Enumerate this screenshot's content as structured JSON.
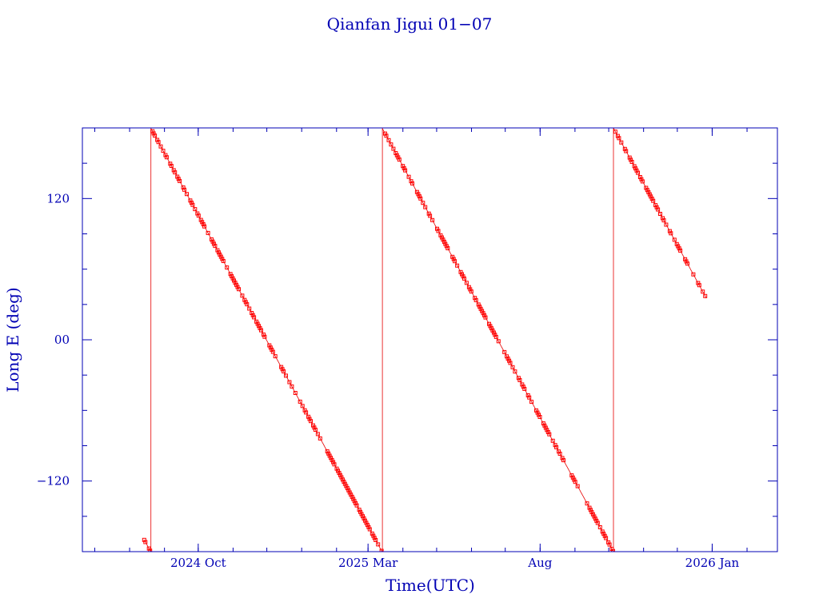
{
  "chart_data": {
    "type": "scatter",
    "title": "Qianfan Jigui 01−07",
    "xlabel": "Time(UTC)",
    "ylabel": "Long E (deg)",
    "x_range": [
      "2024-06-20",
      "2026-02-28"
    ],
    "ylim": [
      -180,
      180
    ],
    "x_ticks": [
      {
        "date": "2024-10-01",
        "label": "2024 Oct"
      },
      {
        "date": "2025-03-01",
        "label": "2025 Mar"
      },
      {
        "date": "2025-08-01",
        "label": "Aug"
      },
      {
        "date": "2026-01-01",
        "label": "2026 Jan"
      }
    ],
    "y_ticks": [
      {
        "value": -120,
        "label": "−120"
      },
      {
        "value": 0,
        "label": "00"
      },
      {
        "value": 120,
        "label": "120"
      }
    ],
    "grid": false,
    "line_color": "#e60000",
    "marker_color": "#ff0000",
    "series": [
      {
        "start": "2024-08-14",
        "end": "2025-12-27",
        "wrap_range": [
          -180,
          180
        ],
        "drift_deg_per_day": -1.75,
        "values_deg": [
          -170,
          75,
          -45,
          -170,
          175
        ]
      }
    ]
  }
}
